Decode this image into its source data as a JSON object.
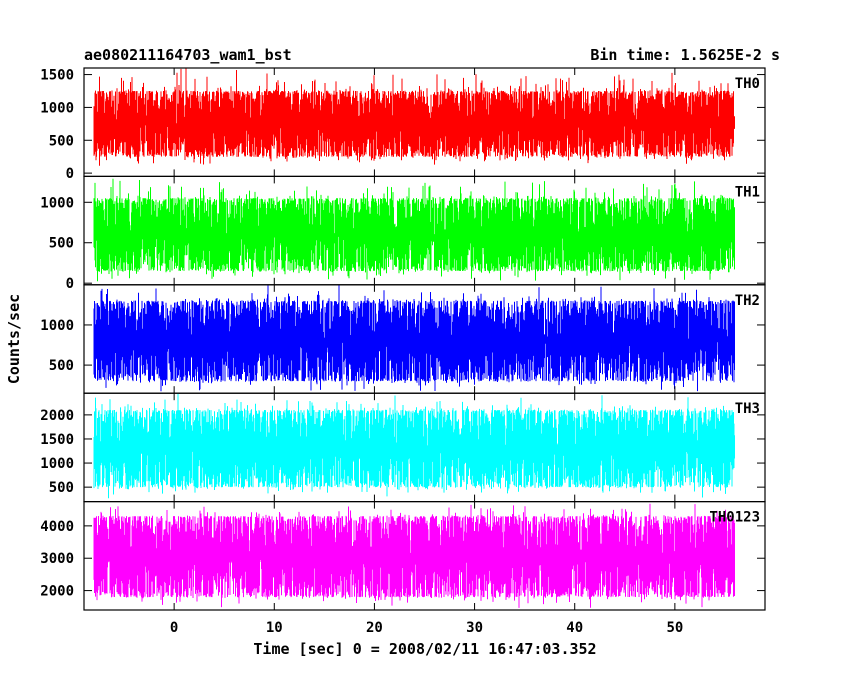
{
  "chart_data": {
    "type": "line",
    "title": "ae080211164703_wam1_bst",
    "subtitle": "Bin time: 1.5625E-2 s",
    "xlabel": "Time [sec] 0 = 2008/02/11 16:47:03.352",
    "ylabel": "Counts/sec",
    "xlim": [
      -9,
      59
    ],
    "x_ticks": [
      0,
      10,
      20,
      30,
      40,
      50
    ],
    "x_data_range": [
      -8,
      56
    ],
    "bin_time_s": 0.015625,
    "grid": false,
    "legend": "none",
    "series": [
      {
        "name": "TH0",
        "color": "#ff0000",
        "ylim": [
          -50,
          1600
        ],
        "y_ticks": [
          0,
          500,
          1000,
          1500
        ],
        "typical_low": 250,
        "typical_high": 1250,
        "min": 100,
        "max": 1600
      },
      {
        "name": "TH1",
        "color": "#00ff00",
        "ylim": [
          -20,
          1320
        ],
        "y_ticks": [
          0,
          500,
          1000
        ],
        "typical_low": 150,
        "typical_high": 1050,
        "min": 20,
        "max": 1320
      },
      {
        "name": "TH2",
        "color": "#0000ff",
        "ylim": [
          150,
          1500
        ],
        "y_ticks": [
          500,
          1000
        ],
        "typical_low": 300,
        "typical_high": 1300,
        "min": 150,
        "max": 1500
      },
      {
        "name": "TH3",
        "color": "#00ffff",
        "ylim": [
          200,
          2450
        ],
        "y_ticks": [
          500,
          1000,
          1500,
          2000
        ],
        "typical_low": 500,
        "typical_high": 2100,
        "min": 250,
        "max": 2450
      },
      {
        "name": "TH0123",
        "color": "#ff00ff",
        "ylim": [
          1400,
          4750
        ],
        "y_ticks": [
          2000,
          3000,
          4000
        ],
        "typical_low": 1800,
        "typical_high": 4300,
        "min": 1450,
        "max": 4750
      }
    ]
  }
}
